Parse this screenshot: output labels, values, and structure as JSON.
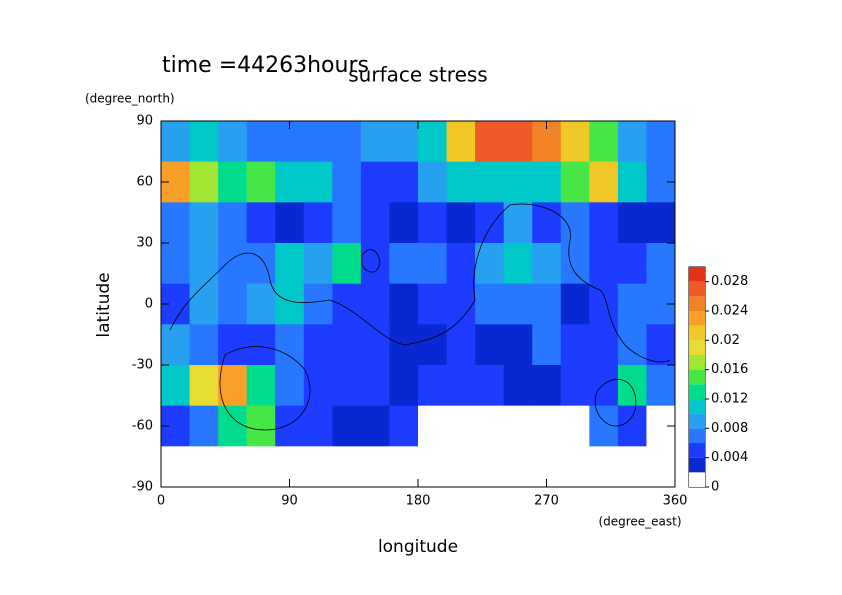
{
  "chart_data": {
    "type": "contour",
    "title": "surface stress",
    "subtitle": "time =44263hours",
    "x_label": "longitude",
    "x_unit": "(degree_east)",
    "y_label": "latitude",
    "y_unit": "(degree_north)",
    "xlim": [
      0,
      360
    ],
    "ylim": [
      -90,
      90
    ],
    "xticks": [
      0,
      90,
      180,
      270,
      360
    ],
    "yticks": [
      -90,
      -60,
      -30,
      0,
      30,
      60,
      90
    ],
    "lon": [
      10,
      30,
      50,
      70,
      90,
      110,
      130,
      150,
      170,
      190,
      210,
      230,
      250,
      270,
      290,
      310,
      330,
      350
    ],
    "lat": [
      80,
      60,
      40,
      20,
      0,
      -20,
      -40,
      -60,
      -80
    ],
    "z": [
      [
        0.008,
        0.01,
        0.008,
        0.006,
        0.006,
        0.006,
        0.006,
        0.008,
        0.008,
        0.01,
        0.02,
        0.026,
        0.026,
        0.024,
        0.02,
        0.014,
        0.008,
        0.006
      ],
      [
        0.022,
        0.016,
        0.012,
        0.014,
        0.01,
        0.01,
        0.006,
        0.004,
        0.004,
        0.008,
        0.01,
        0.01,
        0.01,
        0.01,
        0.014,
        0.02,
        0.01,
        0.006
      ],
      [
        0.006,
        0.008,
        0.006,
        0.004,
        0.002,
        0.004,
        0.006,
        0.004,
        0.002,
        0.004,
        0.002,
        0.004,
        0.008,
        0.004,
        0.006,
        0.004,
        0.002,
        0.002
      ],
      [
        0.006,
        0.008,
        0.006,
        0.006,
        0.01,
        0.008,
        0.012,
        0.004,
        0.006,
        0.006,
        0.004,
        0.008,
        0.01,
        0.008,
        0.006,
        0.004,
        0.004,
        0.006
      ],
      [
        0.004,
        0.008,
        0.006,
        0.008,
        0.01,
        0.006,
        0.004,
        0.004,
        0.002,
        0.004,
        0.004,
        0.006,
        0.006,
        0.006,
        0.002,
        0.004,
        0.006,
        0.006
      ],
      [
        0.008,
        0.006,
        0.004,
        0.004,
        0.006,
        0.004,
        0.004,
        0.004,
        0.002,
        0.002,
        0.004,
        0.002,
        0.002,
        0.006,
        0.004,
        0.004,
        0.006,
        0.004
      ],
      [
        0.01,
        0.018,
        0.022,
        0.012,
        0.006,
        0.004,
        0.004,
        0.004,
        0.002,
        0.004,
        0.004,
        0.004,
        0.002,
        0.002,
        0.004,
        0.004,
        0.012,
        0.006
      ],
      [
        0.004,
        0.006,
        0.012,
        0.014,
        0.004,
        0.004,
        0.002,
        0.002,
        0.004,
        0,
        0,
        0,
        0,
        0,
        0,
        0.006,
        0.004,
        0
      ],
      [
        0,
        0,
        0,
        0,
        0,
        0,
        0,
        0,
        0,
        0,
        0,
        0,
        0,
        0,
        0,
        0,
        0,
        0
      ]
    ],
    "levels": [
      0,
      0.002,
      0.004,
      0.006,
      0.008,
      0.01,
      0.012,
      0.014,
      0.016,
      0.018,
      0.02,
      0.022,
      0.024,
      0.026,
      0.028,
      0.03
    ],
    "colors": [
      "#ffffff",
      "#0a28d2",
      "#1e3cff",
      "#2878ff",
      "#28a0f0",
      "#00c8c8",
      "#00dc8c",
      "#46e646",
      "#a0e632",
      "#e6dc32",
      "#f0c828",
      "#faa028",
      "#f08228",
      "#f05a28",
      "#e63214"
    ],
    "colorbar_ticks": [
      0,
      0.004,
      0.008,
      0.012,
      0.016,
      0.02,
      0.024,
      0.028
    ]
  }
}
